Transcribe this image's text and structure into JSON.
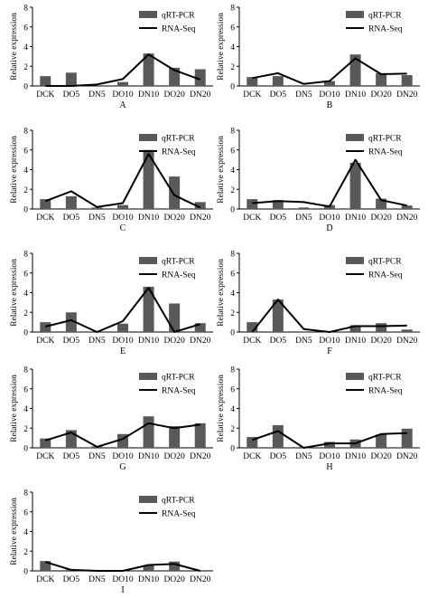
{
  "chart_data": [
    {
      "type": "bar",
      "panel_label": "A",
      "ylabel": "Relative expression",
      "categories": [
        "DCK",
        "DO5",
        "DN5",
        "DO10",
        "DN10",
        "DO20",
        "DN20"
      ],
      "ylim": [
        0,
        8
      ],
      "yticks": [
        0,
        2,
        4,
        6,
        8
      ],
      "legend": "top-right",
      "series": [
        {
          "name": "qRT-PCR",
          "kind": "bar",
          "values": [
            1.0,
            1.35,
            0.0,
            0.4,
            3.3,
            1.85,
            1.7
          ]
        },
        {
          "name": "RNA-Seq",
          "kind": "line",
          "values": [
            0.0,
            0.0,
            0.15,
            0.7,
            3.2,
            1.6,
            0.65
          ]
        }
      ]
    },
    {
      "type": "bar",
      "panel_label": "B",
      "ylabel": "Relative expression",
      "categories": [
        "DCK",
        "DO5",
        "DN5",
        "DO10",
        "DN10",
        "DO20",
        "DN20"
      ],
      "ylim": [
        0,
        8
      ],
      "yticks": [
        0,
        2,
        4,
        6,
        8
      ],
      "legend": "top-right",
      "series": [
        {
          "name": "qRT-PCR",
          "kind": "bar",
          "values": [
            0.9,
            1.0,
            0.0,
            0.5,
            3.2,
            1.3,
            1.1
          ]
        },
        {
          "name": "RNA-Seq",
          "kind": "line",
          "values": [
            0.8,
            1.3,
            0.2,
            0.5,
            2.8,
            1.2,
            1.25
          ]
        }
      ]
    },
    {
      "type": "bar",
      "panel_label": "C",
      "ylabel": "Relative expression",
      "categories": [
        "DCK",
        "DO5",
        "DN5",
        "DO10",
        "DN10",
        "DO20",
        "DN20"
      ],
      "ylim": [
        0,
        8
      ],
      "yticks": [
        0,
        2,
        4,
        6,
        8
      ],
      "legend": "top-right",
      "series": [
        {
          "name": "qRT-PCR",
          "kind": "bar",
          "values": [
            1.0,
            1.3,
            0.15,
            0.4,
            6.0,
            3.3,
            0.7
          ]
        },
        {
          "name": "RNA-Seq",
          "kind": "line",
          "values": [
            0.8,
            1.8,
            0.2,
            0.6,
            5.6,
            1.4,
            0.15
          ]
        }
      ]
    },
    {
      "type": "bar",
      "panel_label": "D",
      "ylabel": "Relative expression",
      "categories": [
        "DCK",
        "DO5",
        "DN5",
        "DO10",
        "DN10",
        "DO20",
        "DN20"
      ],
      "ylim": [
        0,
        8
      ],
      "yticks": [
        0,
        2,
        4,
        6,
        8
      ],
      "legend": "top-right",
      "series": [
        {
          "name": "qRT-PCR",
          "kind": "bar",
          "values": [
            1.0,
            0.9,
            0.15,
            0.4,
            4.7,
            1.05,
            0.35
          ]
        },
        {
          "name": "RNA-Seq",
          "kind": "line",
          "values": [
            0.6,
            0.8,
            0.7,
            0.25,
            5.0,
            0.9,
            0.35
          ]
        }
      ]
    },
    {
      "type": "bar",
      "panel_label": "E",
      "ylabel": "Relative expression",
      "categories": [
        "DCK",
        "DO5",
        "DN5",
        "DO10",
        "DN10",
        "DO20",
        "DN20"
      ],
      "ylim": [
        0,
        8
      ],
      "yticks": [
        0,
        2,
        4,
        6,
        8
      ],
      "legend": "top-right",
      "series": [
        {
          "name": "qRT-PCR",
          "kind": "bar",
          "values": [
            1.0,
            2.0,
            0.0,
            0.85,
            4.6,
            2.9,
            0.9
          ]
        },
        {
          "name": "RNA-Seq",
          "kind": "line",
          "values": [
            0.55,
            1.2,
            0.0,
            1.1,
            4.5,
            0.0,
            0.8
          ]
        }
      ]
    },
    {
      "type": "bar",
      "panel_label": "F",
      "ylabel": "Relative expression",
      "categories": [
        "DCK",
        "DO5",
        "DN5",
        "DO10",
        "DN10",
        "DO20",
        "DN20"
      ],
      "ylim": [
        0,
        8
      ],
      "yticks": [
        0,
        2,
        4,
        6,
        8
      ],
      "legend": "top-right",
      "series": [
        {
          "name": "qRT-PCR",
          "kind": "bar",
          "values": [
            1.0,
            3.3,
            0.0,
            0.0,
            0.7,
            0.9,
            0.25
          ]
        },
        {
          "name": "RNA-Seq",
          "kind": "line",
          "values": [
            0.0,
            3.3,
            0.3,
            0.0,
            0.6,
            0.6,
            0.65
          ]
        }
      ]
    },
    {
      "type": "bar",
      "panel_label": "G",
      "ylabel": "Relative expression",
      "categories": [
        "DCK",
        "DO5",
        "DN5",
        "DO10",
        "DN10",
        "DO20",
        "DN20"
      ],
      "ylim": [
        0,
        8
      ],
      "yticks": [
        0,
        2,
        4,
        6,
        8
      ],
      "legend": "top-right",
      "series": [
        {
          "name": "qRT-PCR",
          "kind": "bar",
          "values": [
            0.95,
            1.8,
            0.15,
            1.4,
            3.2,
            2.2,
            2.5
          ]
        },
        {
          "name": "RNA-Seq",
          "kind": "line",
          "values": [
            0.75,
            1.55,
            0.1,
            0.9,
            2.5,
            2.0,
            2.35
          ]
        }
      ]
    },
    {
      "type": "bar",
      "panel_label": "H",
      "ylabel": "Relative expression",
      "categories": [
        "DCK",
        "DO5",
        "DN5",
        "DO10",
        "DN10",
        "DO20",
        "DN20"
      ],
      "ylim": [
        0,
        8
      ],
      "yticks": [
        0,
        2,
        4,
        6,
        8
      ],
      "legend": "top-right",
      "series": [
        {
          "name": "qRT-PCR",
          "kind": "bar",
          "values": [
            1.1,
            2.3,
            0.1,
            0.6,
            0.85,
            1.35,
            1.95
          ]
        },
        {
          "name": "RNA-Seq",
          "kind": "line",
          "values": [
            0.8,
            1.7,
            0.0,
            0.45,
            0.45,
            1.4,
            1.5
          ]
        }
      ]
    },
    {
      "type": "bar",
      "panel_label": "I",
      "ylabel": "Relative expression",
      "categories": [
        "DCK",
        "DO5",
        "DN5",
        "DO10",
        "DN10",
        "DO20",
        "DN20"
      ],
      "ylim": [
        0,
        8
      ],
      "yticks": [
        0,
        2,
        4,
        6,
        8
      ],
      "legend": "top-right",
      "series": [
        {
          "name": "qRT-PCR",
          "kind": "bar",
          "values": [
            1.0,
            0.15,
            0.0,
            0.0,
            0.6,
            0.95,
            0.0
          ]
        },
        {
          "name": "RNA-Seq",
          "kind": "line",
          "values": [
            0.9,
            0.1,
            0.0,
            0.0,
            0.6,
            0.7,
            0.0
          ]
        }
      ]
    }
  ],
  "style": {
    "bar_color": "#595959",
    "line_color": "#000000",
    "axis_color": "#000000"
  }
}
